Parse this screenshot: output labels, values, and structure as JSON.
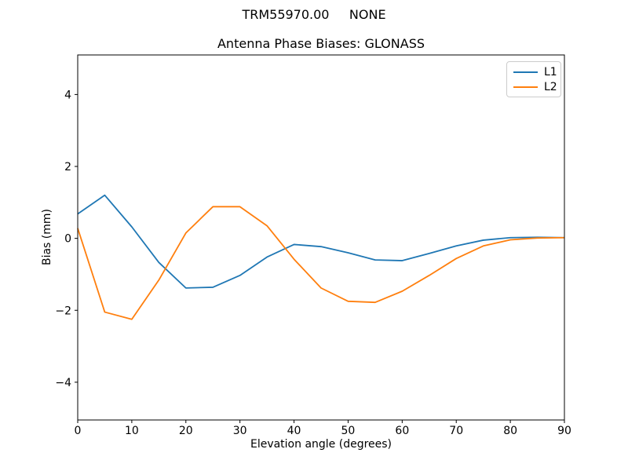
{
  "chart_data": {
    "type": "line",
    "suptitle": "TRM55970.00     NONE",
    "title": "Antenna Phase Biases: GLONASS",
    "xlabel": "Elevation angle (degrees)",
    "ylabel": "Bias (mm)",
    "xlim": [
      0,
      90
    ],
    "ylim": [
      -5.05,
      5.1
    ],
    "xticks": [
      0,
      10,
      20,
      30,
      40,
      50,
      60,
      70,
      80,
      90
    ],
    "yticks": [
      -4,
      -2,
      0,
      2,
      4
    ],
    "grid": false,
    "legend_position": "upper right",
    "x": [
      0,
      5,
      10,
      15,
      20,
      25,
      30,
      35,
      40,
      45,
      50,
      55,
      60,
      65,
      70,
      75,
      80,
      85,
      90
    ],
    "series": [
      {
        "name": "L1",
        "color": "#1f77b4",
        "values": [
          0.68,
          1.2,
          0.32,
          -0.67,
          -1.38,
          -1.36,
          -1.03,
          -0.52,
          -0.17,
          -0.23,
          -0.4,
          -0.6,
          -0.62,
          -0.42,
          -0.21,
          -0.05,
          0.02,
          0.03,
          0.02
        ]
      },
      {
        "name": "L2",
        "color": "#ff7f0e",
        "values": [
          0.28,
          -2.05,
          -2.25,
          -1.16,
          0.15,
          0.88,
          0.88,
          0.35,
          -0.58,
          -1.38,
          -1.75,
          -1.78,
          -1.47,
          -1.03,
          -0.56,
          -0.21,
          -0.04,
          0.01,
          0.02
        ]
      }
    ]
  },
  "colors": {
    "axis": "#000000",
    "legend_border": "#cccccc",
    "background": "#ffffff"
  }
}
